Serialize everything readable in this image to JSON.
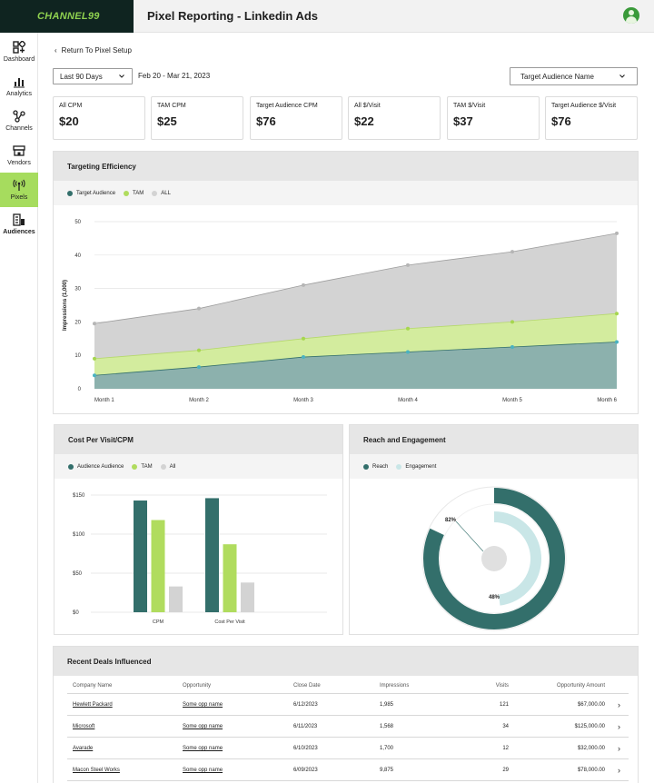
{
  "brand": {
    "logo_text": "CHANNEL99"
  },
  "header": {
    "title": "Pixel Reporting - Linkedin Ads"
  },
  "sidebar": {
    "items": [
      {
        "label": "Dashboard",
        "icon": "dashboard-icon"
      },
      {
        "label": "Analytics",
        "icon": "bar-chart-icon"
      },
      {
        "label": "Channels",
        "icon": "channels-icon"
      },
      {
        "label": "Vendors",
        "icon": "storefront-icon"
      },
      {
        "label": "Pixels",
        "icon": "pixel-signal-icon"
      },
      {
        "label": "Audiences",
        "icon": "audiences-icon"
      }
    ],
    "active": "Pixels"
  },
  "nav": {
    "back_label": "Return To Pixel Setup"
  },
  "filters": {
    "date_select": "Last 90 Days",
    "date_range": "Feb 20 - Mar 21, 2023",
    "audience_select": "Target Audience Name"
  },
  "kpis": [
    {
      "label": "All CPM",
      "value": "$20"
    },
    {
      "label": "TAM CPM",
      "value": "$25"
    },
    {
      "label": "Target Audience CPM",
      "value": "$76"
    },
    {
      "label": "All $/Visit",
      "value": "$22"
    },
    {
      "label": "TAM $/Visit",
      "value": "$37"
    },
    {
      "label": "Target Audience $/Visit",
      "value": "$76"
    }
  ],
  "colors": {
    "dark_teal": "#336f6b",
    "lime": "#b0dc5e",
    "grey": "#d3d3d3",
    "light_teal": "#c9e6e7",
    "active_nav": "#a6dc5e"
  },
  "targeting": {
    "title": "Targeting Efficiency",
    "legend": [
      "Target Audience",
      "TAM",
      "ALL"
    ]
  },
  "cost_card": {
    "title": "Cost Per Visit/CPM",
    "legend": [
      "Audience Audience",
      "TAM",
      "All"
    ]
  },
  "reach_card": {
    "title": "Reach and Engagement",
    "legend": [
      "Reach",
      "Engagement"
    ]
  },
  "chart_data": [
    {
      "type": "area",
      "title": "Targeting Efficiency",
      "xlabel": "",
      "ylabel": "Impressions (1,000)",
      "x": [
        "Month 1",
        "Month 2",
        "Month 3",
        "Month 4",
        "Month 5",
        "Month 6"
      ],
      "ylim": [
        0,
        50
      ],
      "yticks": [
        0,
        10,
        20,
        30,
        40,
        50
      ],
      "grid": true,
      "legend": "top-left",
      "series": [
        {
          "name": "ALL",
          "values": [
            19.5,
            24,
            31,
            37,
            41,
            46.5
          ]
        },
        {
          "name": "TAM",
          "values": [
            9,
            11.5,
            15,
            18,
            20,
            22.5
          ]
        },
        {
          "name": "Target Audience",
          "values": [
            4,
            6.5,
            9.5,
            11,
            12.5,
            14
          ]
        }
      ]
    },
    {
      "type": "bar",
      "title": "Cost Per Visit/CPM",
      "categories": [
        "CPM",
        "Cost Per Visit"
      ],
      "ylim": [
        0,
        150
      ],
      "yticks": [
        "$0",
        "$50",
        "$100",
        "$150"
      ],
      "grid": true,
      "legend": "top-left",
      "series": [
        {
          "name": "Audience Audience",
          "values": [
            143,
            146
          ]
        },
        {
          "name": "TAM",
          "values": [
            118,
            87
          ]
        },
        {
          "name": "All",
          "values": [
            33,
            38
          ]
        }
      ]
    },
    {
      "type": "pie",
      "title": "Reach and Engagement",
      "legend": "top-left",
      "series": [
        {
          "name": "Reach",
          "value": 82,
          "label": "82%"
        },
        {
          "name": "Engagement",
          "value": 48,
          "label": "48%"
        }
      ]
    }
  ],
  "deals": {
    "title": "Recent Deals Influenced",
    "columns": [
      "Company Name",
      "Opportunity",
      "Close Date",
      "Impressions",
      "Visits",
      "Opportunity Amount"
    ],
    "rows": [
      {
        "company": "Hewlett Packard",
        "opportunity": "Some opp name",
        "close_date": "6/12/2023",
        "impressions": "1,985",
        "visits": "121",
        "amount": "$67,000.00"
      },
      {
        "company": "Microsoft",
        "opportunity": "Some opp name",
        "close_date": "6/11/2023",
        "impressions": "1,568",
        "visits": "34",
        "amount": "$125,000.00"
      },
      {
        "company": "Avarade",
        "opportunity": "Some opp name",
        "close_date": "6/10/2023",
        "impressions": "1,700",
        "visits": "12",
        "amount": "$32,000.00"
      },
      {
        "company": "Macon Steel Works",
        "opportunity": "Some opp name",
        "close_date": "6/09/2023",
        "impressions": "9,875",
        "visits": "29",
        "amount": "$78,000.00"
      }
    ]
  }
}
